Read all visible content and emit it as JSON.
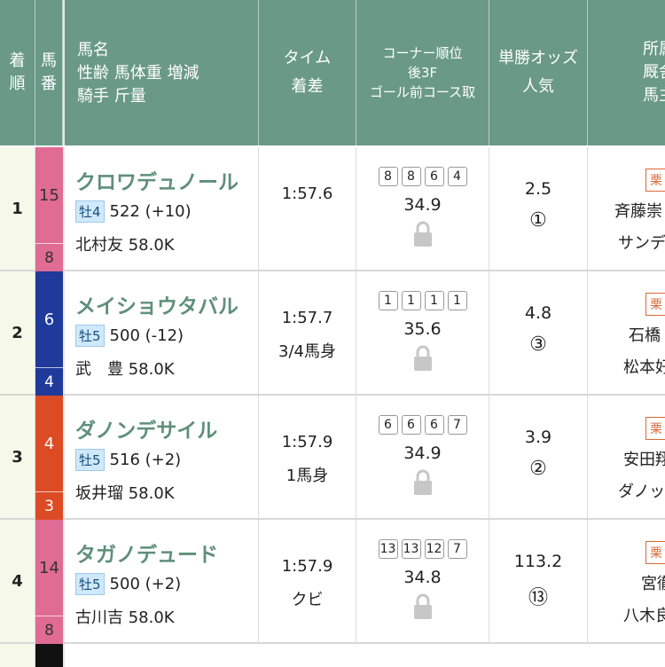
{
  "header": {
    "rank": [
      "着",
      "順"
    ],
    "umaban": [
      "馬",
      "番"
    ],
    "horse": [
      "馬名",
      "性齢 馬体重 増減",
      "騎手 斤量"
    ],
    "time": [
      "タイム",
      "着差"
    ],
    "corner": [
      "コーナー順位",
      "後3F",
      "ゴール前コース取"
    ],
    "odds": [
      "単勝オッズ",
      "人気"
    ],
    "owner": [
      "所属",
      "厩舎",
      "馬主"
    ]
  },
  "rows": [
    {
      "rank": "1",
      "umaban": "15",
      "waku": "8",
      "waku_color": "#e06b93",
      "horse": "クロワデュノール",
      "sexage": "牡4",
      "weight": "522 (+10)",
      "jockey": "北村友 58.0K",
      "time": "1:57.6",
      "margin": "",
      "corners": [
        "8",
        "8",
        "6",
        "4"
      ],
      "last3f": "34.9",
      "odds": "2.5",
      "pop": "①",
      "region": "栗",
      "trainer": "斉藤崇",
      "owner": "サンデ"
    },
    {
      "rank": "2",
      "umaban": "6",
      "waku": "4",
      "waku_color": "#1f3a9a",
      "horse": "メイショウタバル",
      "sexage": "牡5",
      "weight": "500 (-12)",
      "jockey": "武　豊 58.0K",
      "time": "1:57.7",
      "margin": "3/4馬身",
      "corners": [
        "1",
        "1",
        "1",
        "1"
      ],
      "last3f": "35.6",
      "odds": "4.8",
      "pop": "③",
      "region": "栗",
      "trainer": "石橋",
      "owner": "松本好"
    },
    {
      "rank": "3",
      "umaban": "4",
      "waku": "3",
      "waku_color": "#dd4b25",
      "horse": "ダノンデサイル",
      "sexage": "牡5",
      "weight": "516 (+2)",
      "jockey": "坂井瑠 58.0K",
      "time": "1:57.9",
      "margin": "1馬身",
      "corners": [
        "6",
        "6",
        "6",
        "7"
      ],
      "last3f": "34.9",
      "odds": "3.9",
      "pop": "②",
      "region": "栗",
      "trainer": "安田翔",
      "owner": "ダノッ"
    },
    {
      "rank": "4",
      "umaban": "14",
      "waku": "8",
      "waku_color": "#e06b93",
      "horse": "タガノデュード",
      "sexage": "牡5",
      "weight": "500 (+2)",
      "jockey": "古川吉 58.0K",
      "time": "1:57.9",
      "margin": "クビ",
      "corners": [
        "13",
        "13",
        "12",
        "7"
      ],
      "last3f": "34.8",
      "odds": "113.2",
      "pop": "⑬",
      "region": "栗",
      "trainer": "宮徹",
      "owner": "八木良"
    }
  ]
}
